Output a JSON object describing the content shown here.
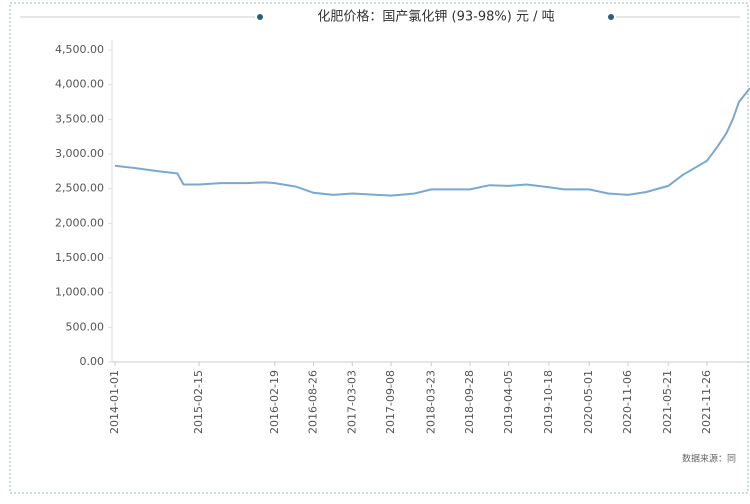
{
  "chart_data": {
    "type": "line",
    "title": "化肥价格：国产氯化钾 (93-98%) 元 / 吨",
    "source": "数据来源：同",
    "x": [
      "2014-01-01",
      "2014-04-01",
      "2014-08-01",
      "2014-11-01",
      "2014-12-01",
      "2015-02-15",
      "2015-06-01",
      "2015-10-01",
      "2016-01-01",
      "2016-02-19",
      "2016-06-01",
      "2016-08-26",
      "2016-12-01",
      "2017-03-03",
      "2017-09-08",
      "2018-01-01",
      "2018-03-23",
      "2018-09-28",
      "2019-01-01",
      "2019-04-05",
      "2019-07-01",
      "2019-10-18",
      "2020-01-01",
      "2020-05-01",
      "2020-08-01",
      "2020-11-06",
      "2021-02-01",
      "2021-05-21",
      "2021-08-01",
      "2021-11-26",
      "2022-01-15",
      "2022-03-01",
      "2022-04-01",
      "2022-05-01",
      "2022-06-24"
    ],
    "values": [
      2830,
      2800,
      2750,
      2720,
      2560,
      2560,
      2580,
      2580,
      2590,
      2580,
      2530,
      2440,
      2410,
      2430,
      2400,
      2430,
      2490,
      2490,
      2550,
      2540,
      2560,
      2520,
      2490,
      2490,
      2430,
      2410,
      2450,
      2540,
      2700,
      2900,
      3100,
      3300,
      3500,
      3750,
      3950
    ],
    "color": "#7aa8cf",
    "xlim": [
      "2014-01-01",
      "2022-06-24"
    ],
    "xticks": [
      "2014-01-01",
      "2015-02-15",
      "2016-02-19",
      "2016-08-26",
      "2017-03-03",
      "2017-09-08",
      "2018-03-23",
      "2018-09-28",
      "2019-04-05",
      "2019-10-18",
      "2020-05-01",
      "2020-11-06",
      "2021-05-21",
      "2021-11-26"
    ],
    "ylim": [
      0,
      4500
    ],
    "yticks": [
      {
        "value": 0,
        "label": "0.00"
      },
      {
        "value": 500,
        "label": "500.00"
      },
      {
        "value": 1000,
        "label": "1,000.00"
      },
      {
        "value": 1500,
        "label": "1,500.00"
      },
      {
        "value": 2000,
        "label": "2,000.00"
      },
      {
        "value": 2500,
        "label": "2,500.00"
      },
      {
        "value": 3000,
        "label": "3,000.00"
      },
      {
        "value": 3500,
        "label": "3,500.00"
      },
      {
        "value": 4000,
        "label": "4,000.00"
      },
      {
        "value": 4500,
        "label": "4,500.00"
      }
    ],
    "grid": false
  }
}
